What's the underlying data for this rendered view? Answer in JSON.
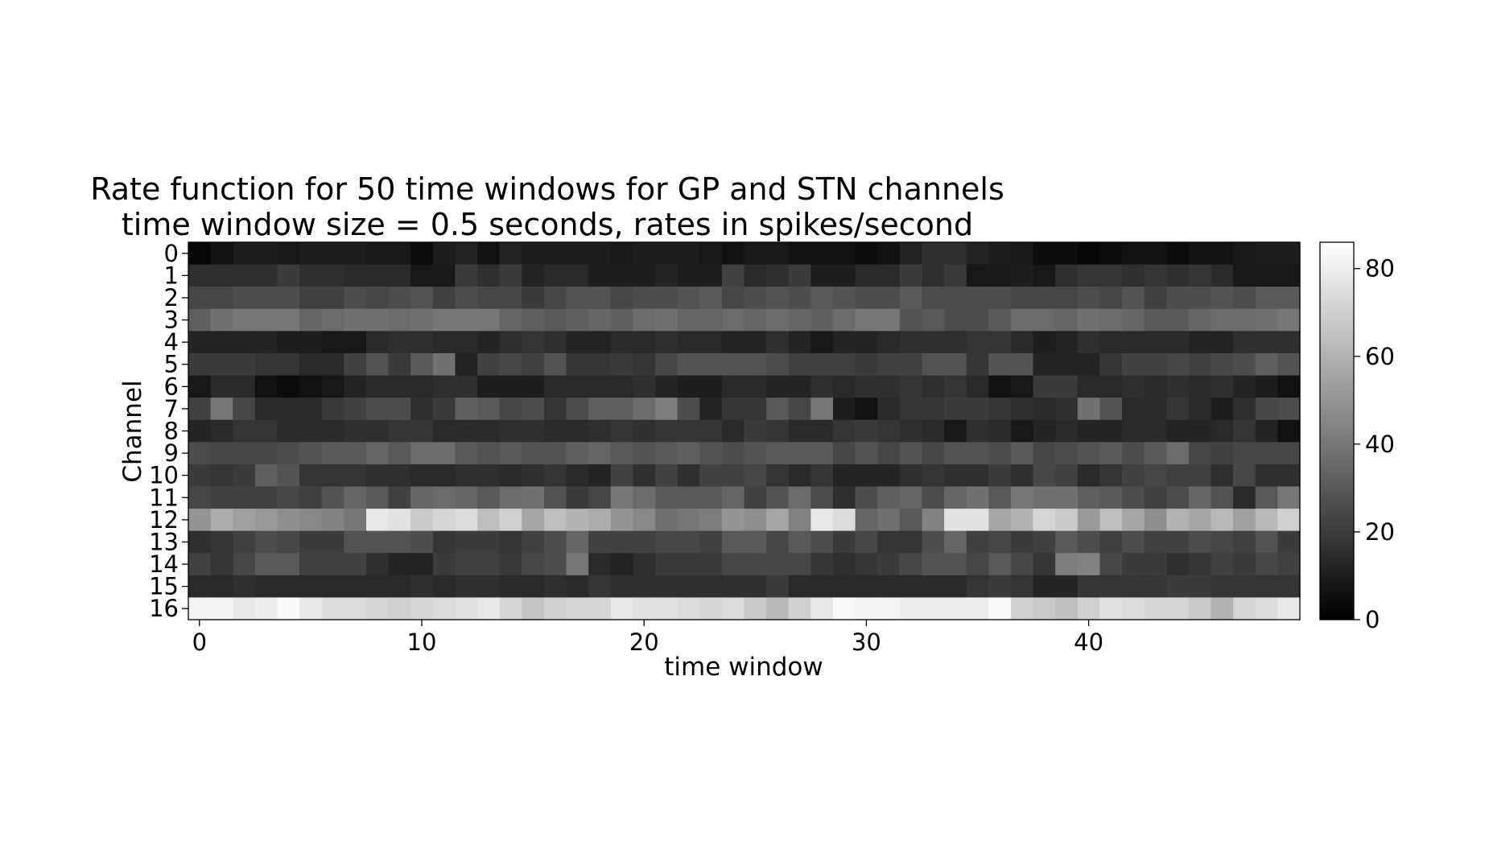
{
  "chart_data": {
    "type": "heatmap",
    "title": "Rate function for 50 time windows for GP and STN channels",
    "subtitle": "time window size = 0.5 seconds, rates in spikes/second",
    "xlabel": "time window",
    "ylabel": "Channel",
    "x_ticks": [
      "0",
      "10",
      "20",
      "30",
      "40"
    ],
    "x_tick_values": [
      0,
      10,
      20,
      30,
      40
    ],
    "y_ticks": [
      "0",
      "1",
      "2",
      "3",
      "4",
      "5",
      "6",
      "7",
      "8",
      "9",
      "10",
      "11",
      "12",
      "13",
      "14",
      "15",
      "16"
    ],
    "colormap": "gray",
    "vmin": 0,
    "vmax": 86,
    "colorbar_ticks": [
      "0",
      "20",
      "40",
      "60",
      "80"
    ],
    "colorbar_tick_values": [
      0,
      20,
      40,
      60,
      80
    ],
    "n_windows": 50,
    "channels": 17,
    "values": [
      [
        2,
        6,
        10,
        10,
        8,
        10,
        10,
        10,
        8,
        8,
        4,
        10,
        12,
        6,
        12,
        10,
        10,
        10,
        10,
        8,
        10,
        10,
        10,
        8,
        6,
        8,
        8,
        6,
        6,
        6,
        4,
        6,
        12,
        16,
        16,
        12,
        10,
        8,
        4,
        4,
        2,
        4,
        6,
        6,
        4,
        6,
        6,
        8,
        10,
        10
      ],
      [
        16,
        16,
        16,
        16,
        20,
        16,
        16,
        14,
        14,
        14,
        8,
        8,
        20,
        16,
        20,
        12,
        14,
        14,
        10,
        10,
        10,
        12,
        10,
        10,
        22,
        14,
        16,
        20,
        10,
        10,
        14,
        14,
        20,
        16,
        20,
        8,
        8,
        10,
        8,
        16,
        18,
        18,
        16,
        18,
        16,
        18,
        14,
        8,
        8,
        8
      ],
      [
        24,
        24,
        26,
        26,
        26,
        22,
        22,
        26,
        24,
        26,
        28,
        22,
        26,
        24,
        24,
        20,
        24,
        28,
        28,
        24,
        26,
        26,
        28,
        30,
        24,
        26,
        28,
        26,
        30,
        28,
        26,
        26,
        30,
        26,
        26,
        26,
        26,
        24,
        24,
        24,
        26,
        24,
        28,
        22,
        26,
        26,
        28,
        26,
        30,
        30
      ],
      [
        32,
        38,
        40,
        40,
        40,
        34,
        36,
        38,
        38,
        36,
        38,
        40,
        40,
        40,
        34,
        32,
        30,
        32,
        34,
        32,
        36,
        38,
        34,
        34,
        36,
        34,
        36,
        34,
        32,
        36,
        40,
        40,
        28,
        30,
        26,
        26,
        30,
        36,
        36,
        34,
        38,
        36,
        34,
        30,
        30,
        34,
        36,
        36,
        38,
        40
      ],
      [
        12,
        12,
        12,
        12,
        10,
        10,
        8,
        8,
        14,
        16,
        16,
        14,
        14,
        12,
        16,
        18,
        16,
        12,
        12,
        14,
        14,
        16,
        14,
        14,
        12,
        12,
        16,
        12,
        8,
        12,
        12,
        14,
        16,
        16,
        16,
        18,
        18,
        14,
        10,
        12,
        16,
        14,
        14,
        14,
        14,
        12,
        12,
        16,
        16,
        16
      ],
      [
        20,
        20,
        20,
        18,
        18,
        14,
        14,
        22,
        28,
        20,
        30,
        38,
        12,
        22,
        24,
        22,
        28,
        18,
        18,
        20,
        18,
        24,
        28,
        28,
        28,
        28,
        26,
        22,
        22,
        22,
        20,
        22,
        22,
        28,
        28,
        18,
        28,
        28,
        12,
        12,
        12,
        18,
        22,
        22,
        24,
        22,
        24,
        26,
        32,
        28
      ],
      [
        8,
        14,
        14,
        6,
        4,
        6,
        8,
        12,
        14,
        14,
        14,
        16,
        16,
        10,
        10,
        10,
        14,
        14,
        14,
        14,
        16,
        12,
        10,
        10,
        14,
        14,
        12,
        12,
        16,
        14,
        16,
        16,
        18,
        16,
        18,
        14,
        6,
        8,
        20,
        20,
        14,
        14,
        16,
        14,
        16,
        14,
        16,
        12,
        10,
        6
      ],
      [
        22,
        40,
        24,
        14,
        14,
        14,
        20,
        22,
        26,
        26,
        16,
        20,
        32,
        30,
        24,
        26,
        18,
        26,
        32,
        32,
        36,
        42,
        26,
        12,
        18,
        18,
        30,
        24,
        40,
        10,
        6,
        14,
        18,
        18,
        20,
        20,
        18,
        16,
        14,
        16,
        38,
        28,
        14,
        14,
        18,
        14,
        10,
        16,
        24,
        26
      ],
      [
        12,
        14,
        18,
        18,
        14,
        14,
        14,
        16,
        16,
        18,
        18,
        14,
        14,
        14,
        16,
        16,
        14,
        14,
        16,
        18,
        16,
        18,
        18,
        18,
        14,
        20,
        18,
        14,
        14,
        18,
        20,
        18,
        16,
        14,
        8,
        16,
        14,
        8,
        12,
        14,
        12,
        12,
        14,
        14,
        12,
        12,
        14,
        18,
        12,
        6
      ],
      [
        26,
        24,
        24,
        24,
        26,
        28,
        30,
        30,
        34,
        30,
        36,
        36,
        30,
        28,
        30,
        28,
        28,
        32,
        34,
        30,
        28,
        30,
        32,
        28,
        26,
        28,
        30,
        30,
        30,
        24,
        28,
        24,
        28,
        24,
        28,
        28,
        26,
        30,
        24,
        26,
        28,
        30,
        26,
        30,
        36,
        24,
        22,
        24,
        24,
        24
      ],
      [
        20,
        18,
        20,
        32,
        28,
        18,
        18,
        18,
        16,
        16,
        14,
        14,
        16,
        16,
        14,
        16,
        18,
        14,
        12,
        22,
        16,
        22,
        16,
        22,
        22,
        24,
        18,
        14,
        18,
        12,
        12,
        12,
        16,
        18,
        16,
        16,
        20,
        16,
        24,
        22,
        14,
        18,
        22,
        24,
        22,
        22,
        16,
        24,
        16,
        16
      ],
      [
        24,
        22,
        22,
        22,
        24,
        22,
        28,
        34,
        30,
        22,
        34,
        36,
        34,
        30,
        36,
        38,
        28,
        20,
        24,
        40,
        36,
        30,
        30,
        30,
        34,
        22,
        28,
        36,
        26,
        16,
        26,
        32,
        34,
        26,
        34,
        38,
        30,
        40,
        38,
        38,
        32,
        30,
        26,
        22,
        26,
        34,
        28,
        14,
        30,
        40
      ],
      [
        50,
        58,
        54,
        52,
        48,
        46,
        44,
        40,
        78,
        76,
        68,
        72,
        74,
        64,
        70,
        56,
        64,
        60,
        58,
        50,
        46,
        38,
        40,
        42,
        50,
        48,
        56,
        44,
        78,
        74,
        34,
        38,
        30,
        44,
        76,
        76,
        56,
        60,
        72,
        68,
        52,
        64,
        56,
        48,
        60,
        56,
        62,
        54,
        62,
        70
      ],
      [
        16,
        18,
        22,
        26,
        24,
        20,
        20,
        28,
        28,
        28,
        26,
        18,
        20,
        20,
        18,
        22,
        26,
        34,
        22,
        22,
        22,
        24,
        24,
        22,
        30,
        30,
        24,
        30,
        26,
        20,
        24,
        18,
        18,
        26,
        34,
        22,
        24,
        20,
        22,
        30,
        26,
        22,
        26,
        22,
        22,
        26,
        24,
        22,
        28,
        20
      ],
      [
        22,
        18,
        24,
        30,
        30,
        22,
        22,
        22,
        16,
        12,
        12,
        20,
        22,
        22,
        20,
        24,
        26,
        40,
        14,
        12,
        16,
        20,
        20,
        20,
        24,
        24,
        24,
        24,
        18,
        16,
        18,
        20,
        24,
        28,
        28,
        24,
        30,
        24,
        18,
        42,
        44,
        24,
        20,
        20,
        16,
        18,
        22,
        20,
        24,
        22
      ],
      [
        14,
        14,
        16,
        14,
        14,
        14,
        14,
        14,
        14,
        14,
        16,
        14,
        16,
        16,
        14,
        14,
        16,
        14,
        18,
        16,
        16,
        16,
        16,
        16,
        16,
        16,
        20,
        14,
        14,
        14,
        14,
        14,
        14,
        14,
        14,
        18,
        20,
        18,
        12,
        12,
        18,
        18,
        18,
        18,
        20,
        20,
        18,
        18,
        18,
        18
      ],
      [
        82,
        82,
        78,
        80,
        84,
        78,
        74,
        74,
        72,
        70,
        72,
        74,
        76,
        78,
        72,
        66,
        70,
        72,
        72,
        78,
        76,
        76,
        74,
        72,
        74,
        68,
        62,
        70,
        78,
        84,
        82,
        82,
        80,
        80,
        80,
        80,
        84,
        70,
        68,
        64,
        70,
        76,
        74,
        72,
        72,
        68,
        60,
        72,
        74,
        78
      ]
    ]
  }
}
